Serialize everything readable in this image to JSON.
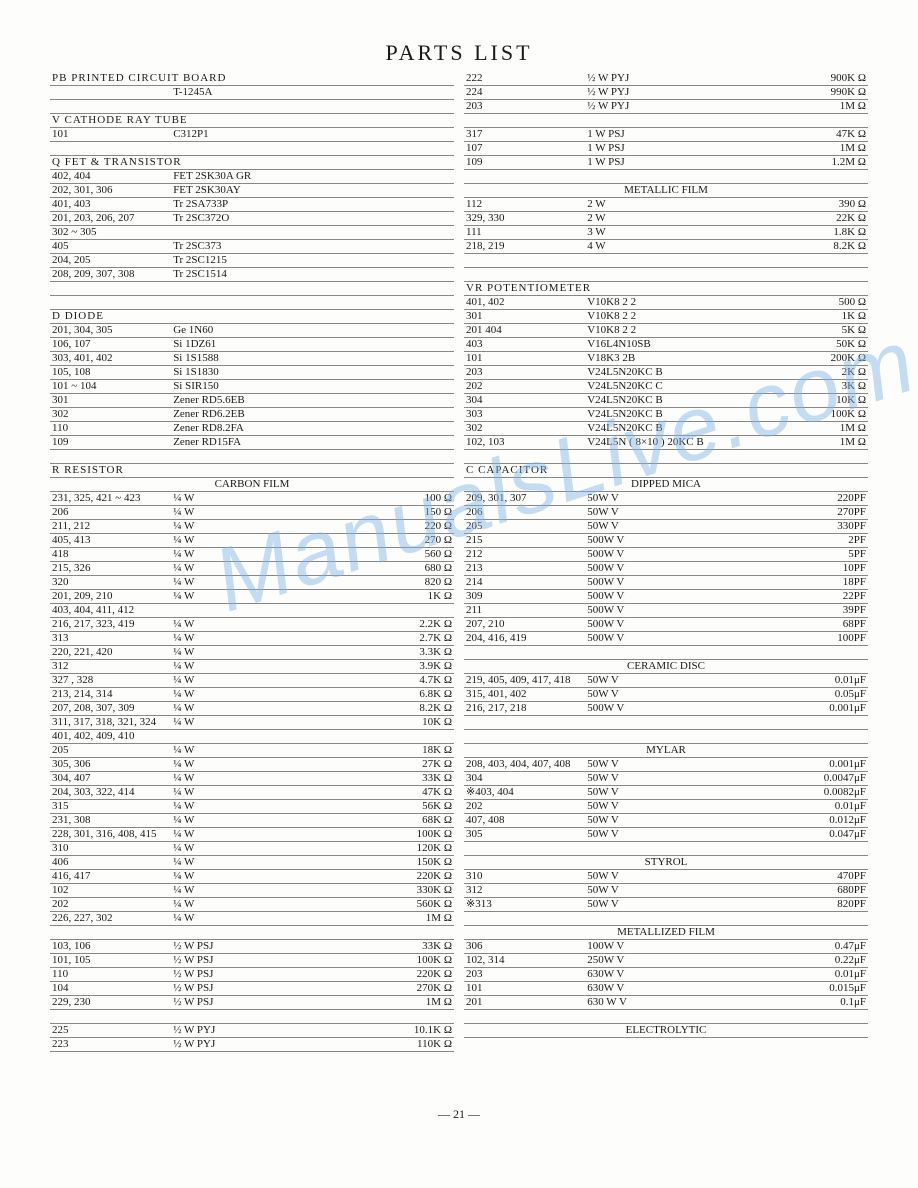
{
  "title": "PARTS  LIST",
  "page_number": "— 21 —",
  "watermark": "ManualsLive.com",
  "left": [
    {
      "t": "hdr",
      "a": "PB  PRINTED  CIRCUIT  BOARD",
      "b": "",
      "c": ""
    },
    {
      "t": "row",
      "a": "",
      "b": "T-1245A",
      "c": ""
    },
    {
      "t": "blk"
    },
    {
      "t": "hdr",
      "a": "V      CATHODE  RAY  TUBE",
      "b": "",
      "c": ""
    },
    {
      "t": "row",
      "a": "101",
      "b": "C312P1",
      "c": ""
    },
    {
      "t": "blk"
    },
    {
      "t": "hdr",
      "a": "Q      FET  &  TRANSISTOR",
      "b": "",
      "c": ""
    },
    {
      "t": "row",
      "a": "402, 404",
      "b": "FET   2SK30A GR",
      "c": ""
    },
    {
      "t": "row",
      "a": "202, 301, 306",
      "b": "FET   2SK30AY",
      "c": ""
    },
    {
      "t": "row",
      "a": "401, 403",
      "b": "Tr     2SA733P",
      "c": ""
    },
    {
      "t": "row",
      "a": "201, 203, 206, 207",
      "b": "Tr     2SC372O",
      "c": ""
    },
    {
      "t": "row",
      "a": "302 ~ 305",
      "b": "",
      "c": ""
    },
    {
      "t": "row",
      "a": "405",
      "b": "Tr     2SC373",
      "c": ""
    },
    {
      "t": "row",
      "a": "204, 205",
      "b": "Tr     2SC1215",
      "c": ""
    },
    {
      "t": "row",
      "a": "208, 209, 307, 308",
      "b": "Tr     2SC1514",
      "c": ""
    },
    {
      "t": "blk"
    },
    {
      "t": "blk"
    },
    {
      "t": "hdr",
      "a": "D      DIODE",
      "b": "",
      "c": ""
    },
    {
      "t": "row",
      "a": "201, 304, 305",
      "b": "Ge      1N60",
      "c": ""
    },
    {
      "t": "row",
      "a": "106, 107",
      "b": "Si       1DZ61",
      "c": ""
    },
    {
      "t": "row",
      "a": "303, 401, 402",
      "b": "Si       1S1588",
      "c": ""
    },
    {
      "t": "row",
      "a": "105, 108",
      "b": "Si       1S1830",
      "c": ""
    },
    {
      "t": "row",
      "a": "101 ~ 104",
      "b": "Si       SIR150",
      "c": ""
    },
    {
      "t": "row",
      "a": "301",
      "b": "Zener   RD5.6EB",
      "c": ""
    },
    {
      "t": "row",
      "a": "302",
      "b": "Zener   RD6.2EB",
      "c": ""
    },
    {
      "t": "row",
      "a": "110",
      "b": "Zener   RD8.2FA",
      "c": ""
    },
    {
      "t": "row",
      "a": "109",
      "b": "Zener   RD15FA",
      "c": ""
    },
    {
      "t": "blk"
    },
    {
      "t": "hdr",
      "a": "R      RESISTOR",
      "b": "",
      "c": ""
    },
    {
      "t": "ctr",
      "a": "CARBON  FILM"
    },
    {
      "t": "row",
      "a": "231, 325, 421 ~ 423",
      "b": "¼ W",
      "c": "100 Ω"
    },
    {
      "t": "row",
      "a": "206",
      "b": "¼ W",
      "c": "150 Ω"
    },
    {
      "t": "row",
      "a": "211, 212",
      "b": "¼ W",
      "c": "220 Ω"
    },
    {
      "t": "row",
      "a": "405, 413",
      "b": "¼ W",
      "c": "270 Ω"
    },
    {
      "t": "row",
      "a": "418",
      "b": "¼ W",
      "c": "560 Ω"
    },
    {
      "t": "row",
      "a": "215, 326",
      "b": "¼ W",
      "c": "680 Ω"
    },
    {
      "t": "row",
      "a": "320",
      "b": "¼ W",
      "c": "820 Ω"
    },
    {
      "t": "row",
      "a": "201, 209, 210",
      "b": "¼ W",
      "c": "1K Ω"
    },
    {
      "t": "row",
      "a": "403, 404, 411, 412",
      "b": "",
      "c": ""
    },
    {
      "t": "row",
      "a": "216, 217, 323, 419",
      "b": "¼ W",
      "c": "2.2K Ω"
    },
    {
      "t": "row",
      "a": "313",
      "b": "¼ W",
      "c": "2.7K Ω"
    },
    {
      "t": "row",
      "a": "220, 221, 420",
      "b": "¼ W",
      "c": "3.3K Ω"
    },
    {
      "t": "row",
      "a": "312",
      "b": "¼ W",
      "c": "3.9K Ω"
    },
    {
      "t": "row",
      "a": "327 , 328",
      "b": "¼ W",
      "c": "4.7K Ω"
    },
    {
      "t": "row",
      "a": "213, 214, 314",
      "b": "¼ W",
      "c": "6.8K Ω"
    },
    {
      "t": "row",
      "a": "207, 208, 307, 309",
      "b": "¼ W",
      "c": "8.2K Ω"
    },
    {
      "t": "row",
      "a": "311, 317, 318, 321, 324",
      "b": "¼ W",
      "c": "10K Ω"
    },
    {
      "t": "row",
      "a": "401, 402, 409, 410",
      "b": "",
      "c": ""
    },
    {
      "t": "row",
      "a": "205",
      "b": "¼ W",
      "c": "18K Ω"
    },
    {
      "t": "row",
      "a": "305, 306",
      "b": "¼ W",
      "c": "27K Ω"
    },
    {
      "t": "row",
      "a": "304, 407",
      "b": "¼ W",
      "c": "33K Ω"
    },
    {
      "t": "row",
      "a": "204, 303, 322, 414",
      "b": "¼ W",
      "c": "47K Ω"
    },
    {
      "t": "row",
      "a": "315",
      "b": "¼ W",
      "c": "56K Ω"
    },
    {
      "t": "row",
      "a": "231, 308",
      "b": "¼ W",
      "c": "68K Ω"
    },
    {
      "t": "row",
      "a": "228, 301, 316, 408, 415",
      "b": "¼ W",
      "c": "100K Ω"
    },
    {
      "t": "row",
      "a": "310",
      "b": "¼ W",
      "c": "120K Ω"
    },
    {
      "t": "row",
      "a": "406",
      "b": "¼ W",
      "c": "150K Ω"
    },
    {
      "t": "row",
      "a": "416, 417",
      "b": "¼ W",
      "c": "220K Ω"
    },
    {
      "t": "row",
      "a": "102",
      "b": "¼ W",
      "c": "330K Ω"
    },
    {
      "t": "row",
      "a": "202",
      "b": "¼ W",
      "c": "560K Ω"
    },
    {
      "t": "row",
      "a": "226, 227, 302",
      "b": "¼ W",
      "c": "1M Ω"
    },
    {
      "t": "blk"
    },
    {
      "t": "row",
      "a": "103, 106",
      "b": "½ W  PSJ",
      "c": "33K Ω"
    },
    {
      "t": "row",
      "a": "101, 105",
      "b": "½ W  PSJ",
      "c": "100K Ω"
    },
    {
      "t": "row",
      "a": "110",
      "b": "½ W  PSJ",
      "c": "220K Ω"
    },
    {
      "t": "row",
      "a": "104",
      "b": "½ W  PSJ",
      "c": "270K Ω"
    },
    {
      "t": "row",
      "a": "229, 230",
      "b": "½ W  PSJ",
      "c": "1M Ω"
    },
    {
      "t": "blk"
    },
    {
      "t": "row",
      "a": "225",
      "b": "½ W  PYJ",
      "c": "10.1K Ω"
    },
    {
      "t": "row",
      "a": "223",
      "b": "½ W  PYJ",
      "c": "110K Ω"
    }
  ],
  "right": [
    {
      "t": "row",
      "a": "222",
      "b": "½ W  PYJ",
      "c": "900K Ω"
    },
    {
      "t": "row",
      "a": "224",
      "b": "½ W  PYJ",
      "c": "990K Ω"
    },
    {
      "t": "row",
      "a": "203",
      "b": "½ W  PYJ",
      "c": "1M Ω"
    },
    {
      "t": "blk"
    },
    {
      "t": "row",
      "a": "317",
      "b": "1 W  PSJ",
      "c": "47K Ω"
    },
    {
      "t": "row",
      "a": "107",
      "b": "1 W  PSJ",
      "c": "1M Ω"
    },
    {
      "t": "row",
      "a": "109",
      "b": "1 W  PSJ",
      "c": "1.2M Ω"
    },
    {
      "t": "blk"
    },
    {
      "t": "ctr",
      "a": "METALLIC  FILM"
    },
    {
      "t": "row",
      "a": "112",
      "b": "2 W",
      "c": "390 Ω"
    },
    {
      "t": "row",
      "a": "329, 330",
      "b": "2 W",
      "c": "22K Ω"
    },
    {
      "t": "row",
      "a": "111",
      "b": "3 W",
      "c": "1.8K Ω"
    },
    {
      "t": "row",
      "a": "218, 219",
      "b": "4 W",
      "c": "8.2K Ω"
    },
    {
      "t": "blk"
    },
    {
      "t": "blk"
    },
    {
      "t": "hdr",
      "a": "VR     POTENTIOMETER",
      "b": "",
      "c": ""
    },
    {
      "t": "row",
      "a": "401, 402",
      "b": "V10K8  2 2",
      "c": "500 Ω"
    },
    {
      "t": "row",
      "a": "301",
      "b": "V10K8  2 2",
      "c": "1K Ω"
    },
    {
      "t": "row",
      "a": "201  404",
      "b": "V10K8  2 2",
      "c": "5K Ω"
    },
    {
      "t": "row",
      "a": "403",
      "b": "V16L4N10SB",
      "c": "50K Ω"
    },
    {
      "t": "row",
      "a": "101",
      "b": "V18K3  2B",
      "c": "200K Ω"
    },
    {
      "t": "row",
      "a": "203",
      "b": "V24L5N20KC B",
      "c": "2K Ω"
    },
    {
      "t": "row",
      "a": "202",
      "b": "V24L5N20KC C",
      "c": "3K Ω"
    },
    {
      "t": "row",
      "a": "304",
      "b": "V24L5N20KC B",
      "c": "10K Ω"
    },
    {
      "t": "row",
      "a": "303",
      "b": "V24L5N20KC B",
      "c": "100K Ω"
    },
    {
      "t": "row",
      "a": "302",
      "b": "V24L5N20KC B",
      "c": "1M Ω"
    },
    {
      "t": "row",
      "a": "102, 103",
      "b": "V24L5N ( 8×10 ) 20KC B",
      "c": "1M Ω"
    },
    {
      "t": "blk"
    },
    {
      "t": "hdr",
      "a": "C      CAPACITOR",
      "b": "",
      "c": ""
    },
    {
      "t": "ctr",
      "a": "DIPPED  MICA"
    },
    {
      "t": "row",
      "a": "209, 301, 307",
      "b": "50W V",
      "c": "220PF"
    },
    {
      "t": "row",
      "a": "206",
      "b": "50W V",
      "c": "270PF"
    },
    {
      "t": "row",
      "a": "205",
      "b": "50W V",
      "c": "330PF"
    },
    {
      "t": "row",
      "a": "215",
      "b": "500W V",
      "c": "2PF"
    },
    {
      "t": "row",
      "a": "212",
      "b": "500W V",
      "c": "5PF"
    },
    {
      "t": "row",
      "a": "213",
      "b": "500W V",
      "c": "10PF"
    },
    {
      "t": "row",
      "a": "214",
      "b": "500W V",
      "c": "18PF"
    },
    {
      "t": "row",
      "a": "309",
      "b": "500W V",
      "c": "22PF"
    },
    {
      "t": "row",
      "a": "211",
      "b": "500W V",
      "c": "39PF"
    },
    {
      "t": "row",
      "a": "207, 210",
      "b": "500W V",
      "c": "68PF"
    },
    {
      "t": "row",
      "a": "204, 416, 419",
      "b": "500W V",
      "c": "100PF"
    },
    {
      "t": "blk"
    },
    {
      "t": "ctr",
      "a": "CERAMIC  DISC"
    },
    {
      "t": "row",
      "a": "219, 405, 409, 417, 418",
      "b": "50W V",
      "c": "0.01μF"
    },
    {
      "t": "row",
      "a": "315, 401, 402",
      "b": "50W V",
      "c": "0.05μF"
    },
    {
      "t": "row",
      "a": "216, 217, 218",
      "b": "500W V",
      "c": "0.001μF"
    },
    {
      "t": "blk"
    },
    {
      "t": "blk"
    },
    {
      "t": "ctr",
      "a": "MYLAR"
    },
    {
      "t": "row",
      "a": "208, 403, 404, 407, 408",
      "b": "50W V",
      "c": "0.001μF"
    },
    {
      "t": "row",
      "a": "304",
      "b": "50W V",
      "c": "0.0047μF"
    },
    {
      "t": "row",
      "a": "※403, 404",
      "b": "50W V",
      "c": "0.0082μF"
    },
    {
      "t": "row",
      "a": "202",
      "b": "50W V",
      "c": "0.01μF"
    },
    {
      "t": "row",
      "a": "407, 408",
      "b": "50W V",
      "c": "0.012μF"
    },
    {
      "t": "row",
      "a": "305",
      "b": "50W V",
      "c": "0.047μF"
    },
    {
      "t": "blk"
    },
    {
      "t": "ctr",
      "a": "STYROL"
    },
    {
      "t": "row",
      "a": "310",
      "b": "50W V",
      "c": "470PF"
    },
    {
      "t": "row",
      "a": "312",
      "b": "50W V",
      "c": "680PF"
    },
    {
      "t": "row",
      "a": "※313",
      "b": "50W V",
      "c": "820PF"
    },
    {
      "t": "blk"
    },
    {
      "t": "ctr",
      "a": "METALLIZED  FILM"
    },
    {
      "t": "row",
      "a": "306",
      "b": "100W V",
      "c": "0.47μF"
    },
    {
      "t": "row",
      "a": "102, 314",
      "b": "250W V",
      "c": "0.22μF"
    },
    {
      "t": "row",
      "a": "203",
      "b": "630W V",
      "c": "0.01μF"
    },
    {
      "t": "row",
      "a": "101",
      "b": "630W V",
      "c": "0.015μF"
    },
    {
      "t": "row",
      "a": "201",
      "b": "630 W V",
      "c": "0.1μF"
    },
    {
      "t": "blk"
    },
    {
      "t": "ctr",
      "a": "ELECTROLYTIC"
    }
  ]
}
